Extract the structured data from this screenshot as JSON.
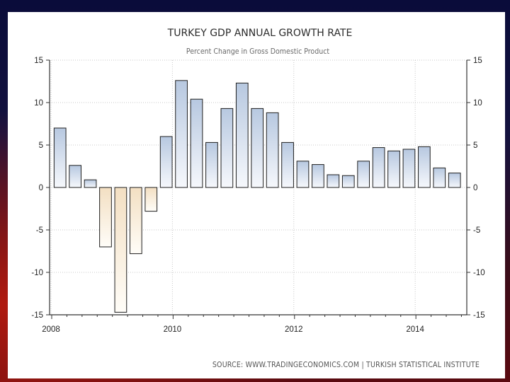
{
  "chart_data": {
    "type": "bar",
    "title": "TURKEY GDP ANNUAL GROWTH RATE",
    "subtitle": "Percent Change in Gross Domestic Product",
    "source": "SOURCE:  WWW.TRADINGECONOMICS.COM  |  TURKISH STATISTICAL  INSTITUTE",
    "ylim": [
      -15,
      15
    ],
    "yticks": [
      "15",
      "10",
      "5",
      "0",
      "-5",
      "-10",
      "-15"
    ],
    "ytick_values": [
      15,
      10,
      5,
      0,
      -5,
      -10,
      -15
    ],
    "xticks": [
      "2008",
      "2010",
      "2012",
      "2014"
    ],
    "x_start_year": 2008,
    "xlabel": "",
    "ylabel": "",
    "grid": true,
    "categories": [
      "2008 Q1",
      "2008 Q2",
      "2008 Q3",
      "2008 Q4",
      "2009 Q1",
      "2009 Q2",
      "2009 Q3",
      "2009 Q4",
      "2010 Q1",
      "2010 Q2",
      "2010 Q3",
      "2010 Q4",
      "2011 Q1",
      "2011 Q2",
      "2011 Q3",
      "2011 Q4",
      "2012 Q1",
      "2012 Q2",
      "2012 Q3",
      "2012 Q4",
      "2013 Q1",
      "2013 Q2",
      "2013 Q3",
      "2013 Q4",
      "2014 Q1",
      "2014 Q2",
      "2014 Q3"
    ],
    "values": [
      7.0,
      2.6,
      0.9,
      -7.0,
      -14.7,
      -7.8,
      -2.8,
      6.0,
      12.6,
      10.4,
      5.3,
      9.3,
      12.3,
      9.3,
      8.8,
      5.3,
      3.1,
      2.7,
      1.5,
      1.4,
      3.1,
      4.7,
      4.3,
      4.5,
      4.8,
      2.3,
      1.7
    ],
    "colors": {
      "positive_top": "#b7c8e0",
      "positive_bottom": "#f6f8fc",
      "negative_top": "#f3dfc2",
      "negative_bottom": "#fffdf8",
      "bar_stroke": "#1f1f1f"
    }
  }
}
